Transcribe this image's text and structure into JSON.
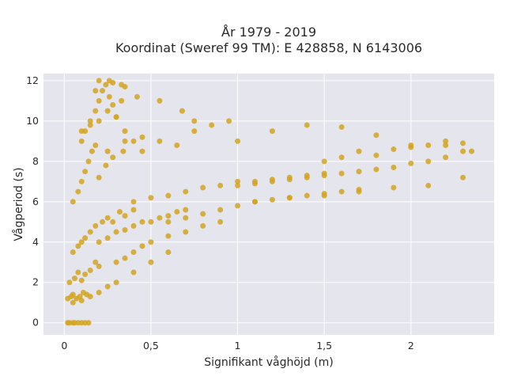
{
  "chart_data": {
    "type": "scatter",
    "title": "År 1979 - 2019",
    "subtitle": "Koordinat (Sweref 99 TM): E 428858, N 6143006",
    "xlabel": "Signifikant våghöjd (m)",
    "ylabel": "Vågperiod (s)",
    "xlim": [
      -0.12,
      2.48
    ],
    "ylim": [
      -0.6,
      12.35
    ],
    "xticks": [
      0,
      0.5,
      1,
      1.5,
      2
    ],
    "xtick_labels": [
      "0",
      "0,5",
      "1",
      "1,5",
      "2"
    ],
    "yticks": [
      0,
      2,
      4,
      6,
      8,
      10,
      12
    ],
    "ytick_labels": [
      "0",
      "2",
      "4",
      "6",
      "8",
      "10",
      "12"
    ],
    "grid": true,
    "background": "#E5E5EE",
    "marker_color": "#D4A520",
    "series": [
      {
        "x": [
          0.02,
          0.03,
          0.05,
          0.06,
          0.08,
          0.1,
          0.12,
          0.14,
          0.02,
          0.04,
          0.05,
          0.07,
          0.09,
          0.11,
          0.13,
          0.03,
          0.06,
          0.08,
          0.1,
          0.12,
          0.15,
          0.18,
          0.2,
          0.05,
          0.08,
          0.1,
          0.12,
          0.15,
          0.18,
          0.22,
          0.25,
          0.28,
          0.32,
          0.35,
          0.4,
          0.1,
          0.12,
          0.15,
          0.18,
          0.2,
          0.22,
          0.24,
          0.26,
          0.28,
          0.3,
          0.33,
          0.05,
          0.08,
          0.1,
          0.12,
          0.14,
          0.16,
          0.18,
          0.2,
          0.24,
          0.28,
          0.34,
          0.2,
          0.25,
          0.3,
          0.35,
          0.4,
          0.45,
          0.5,
          0.55,
          0.6,
          0.65,
          0.7,
          0.3,
          0.35,
          0.4,
          0.45,
          0.5,
          0.6,
          0.7,
          0.8,
          0.9,
          0.4,
          0.5,
          0.6,
          0.7,
          0.8,
          0.9,
          1.0,
          1.1,
          1.2,
          1.3,
          1.4,
          1.5,
          0.6,
          0.7,
          0.8,
          0.9,
          1.0,
          1.1,
          1.2,
          1.3,
          1.4,
          1.5,
          1.6,
          1.7,
          1.0,
          1.1,
          1.2,
          1.3,
          1.4,
          1.5,
          1.6,
          1.7,
          1.8,
          1.9,
          2.0,
          2.1,
          2.2,
          2.3,
          1.5,
          1.6,
          1.7,
          1.8,
          1.9,
          2.0,
          2.1,
          2.2,
          2.3,
          2.35,
          0.1,
          0.15,
          0.2,
          0.25,
          0.3,
          0.35,
          0.4,
          0.45,
          0.05,
          0.1,
          0.15,
          0.2,
          0.25,
          0.3,
          0.4,
          0.5,
          0.6,
          0.25,
          0.35,
          0.45,
          0.55,
          0.65,
          0.75,
          0.85,
          0.95,
          1.0,
          1.2,
          1.4,
          1.6,
          1.8,
          2.0,
          2.2,
          1.1,
          1.3,
          1.5,
          1.7,
          1.9,
          2.1,
          2.3,
          0.2,
          0.28,
          0.33,
          0.26,
          0.18,
          0.35,
          0.42,
          0.55,
          0.68,
          0.75
        ],
        "y": [
          0.0,
          0.0,
          0.0,
          0.0,
          0.0,
          0.0,
          0.0,
          0.0,
          1.2,
          1.3,
          1.4,
          1.2,
          1.3,
          1.5,
          1.4,
          2.0,
          2.2,
          2.5,
          2.1,
          2.4,
          2.6,
          3.0,
          2.8,
          3.5,
          3.8,
          4.0,
          4.2,
          4.5,
          4.8,
          5.0,
          5.2,
          5.0,
          5.5,
          5.3,
          5.6,
          9.0,
          9.5,
          10.0,
          10.5,
          11.0,
          11.5,
          11.8,
          11.2,
          10.8,
          10.2,
          11.0,
          6.0,
          6.5,
          7.0,
          7.5,
          8.0,
          8.5,
          8.8,
          7.2,
          7.8,
          8.2,
          8.5,
          4.0,
          4.2,
          4.5,
          4.6,
          4.8,
          5.0,
          5.0,
          5.2,
          5.3,
          5.5,
          5.6,
          3.0,
          3.2,
          3.5,
          3.8,
          4.0,
          4.3,
          4.5,
          4.8,
          5.0,
          6.0,
          6.2,
          6.3,
          6.5,
          6.7,
          6.8,
          7.0,
          7.0,
          7.1,
          7.2,
          7.3,
          7.4,
          5.0,
          5.2,
          5.4,
          5.6,
          5.8,
          6.0,
          6.1,
          6.2,
          6.3,
          6.4,
          6.5,
          6.6,
          6.8,
          6.9,
          7.0,
          7.1,
          7.2,
          7.3,
          7.4,
          7.5,
          7.6,
          7.7,
          7.9,
          8.0,
          8.2,
          8.5,
          8.0,
          8.2,
          8.5,
          8.3,
          8.6,
          8.7,
          8.8,
          9.0,
          8.9,
          8.5,
          9.5,
          9.8,
          10.0,
          10.5,
          10.2,
          9.5,
          9.0,
          8.5,
          1.0,
          1.1,
          1.3,
          1.5,
          1.8,
          2.0,
          2.5,
          3.0,
          3.5,
          8.5,
          9.0,
          9.2,
          9.0,
          8.8,
          9.5,
          9.8,
          10.0,
          9.0,
          9.5,
          9.8,
          9.7,
          9.3,
          8.8,
          8.8,
          6.0,
          6.2,
          6.3,
          6.5,
          6.7,
          6.8,
          7.2,
          12.0,
          11.9,
          11.8,
          12.0,
          11.5,
          11.7,
          11.2,
          11.0,
          10.5,
          10.0
        ]
      }
    ]
  }
}
